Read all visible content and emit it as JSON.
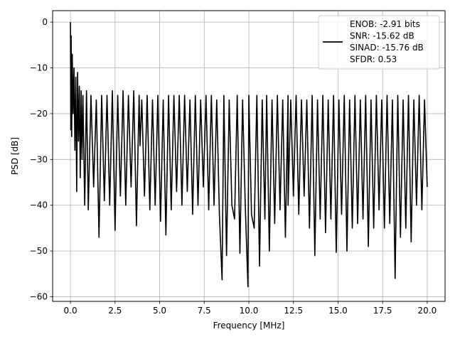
{
  "chart_data": {
    "type": "line",
    "title": "",
    "xlabel": "Frequency [MHz]",
    "ylabel": "PSD [dB]",
    "xlim": [
      -1.0,
      21.0
    ],
    "ylim": [
      -61.0,
      2.5
    ],
    "xticks": [
      0.0,
      2.5,
      5.0,
      7.5,
      10.0,
      12.5,
      15.0,
      17.5,
      20.0
    ],
    "xtick_labels": [
      "0.0",
      "2.5",
      "5.0",
      "7.5",
      "10.0",
      "12.5",
      "15.0",
      "17.5",
      "20.0"
    ],
    "yticks": [
      0,
      -10,
      -20,
      -30,
      -40,
      -50,
      -60
    ],
    "ytick_labels": [
      "0",
      "−10",
      "−20",
      "−30",
      "−40",
      "−50",
      "−60"
    ],
    "grid": true,
    "legend_position": "top-right",
    "legend_lines": [
      "ENOB: -2.91 bits",
      "SNR: -15.62 dB",
      "SINAD: -15.76 dB",
      "SFDR: 0.53"
    ],
    "series": [
      {
        "color": "#000000",
        "x": [
          0.0,
          0.02,
          0.04,
          0.07,
          0.1,
          0.15,
          0.2,
          0.25,
          0.3,
          0.35,
          0.4,
          0.45,
          0.5,
          0.55,
          0.6,
          0.65,
          0.7,
          0.8,
          0.9,
          1.0,
          1.15,
          1.3,
          1.45,
          1.6,
          1.75,
          1.9,
          2.05,
          2.2,
          2.35,
          2.5,
          2.65,
          2.8,
          2.95,
          3.1,
          3.25,
          3.4,
          3.55,
          3.7,
          3.85,
          3.9,
          4.0,
          4.15,
          4.3,
          4.45,
          4.6,
          4.75,
          4.9,
          5.05,
          5.2,
          5.35,
          5.5,
          5.65,
          5.8,
          5.95,
          6.1,
          6.25,
          6.4,
          6.55,
          6.7,
          6.85,
          7.0,
          7.15,
          7.3,
          7.45,
          7.6,
          7.75,
          7.9,
          8.05,
          8.2,
          8.35,
          8.5,
          8.6,
          8.75,
          8.9,
          9.05,
          9.2,
          9.35,
          9.5,
          9.65,
          9.8,
          9.95,
          10.0,
          10.15,
          10.3,
          10.45,
          10.6,
          10.75,
          10.9,
          11.0,
          11.15,
          11.3,
          11.45,
          11.6,
          11.75,
          11.9,
          12.05,
          12.2,
          12.2,
          12.35,
          12.5,
          12.65,
          12.8,
          12.95,
          13.1,
          13.25,
          13.4,
          13.55,
          13.7,
          13.85,
          14.0,
          14.15,
          14.3,
          14.45,
          14.6,
          14.75,
          14.9,
          15.05,
          15.2,
          15.35,
          15.5,
          15.65,
          15.8,
          15.95,
          16.1,
          16.25,
          16.4,
          16.55,
          16.7,
          16.85,
          17.0,
          17.15,
          17.3,
          17.45,
          17.6,
          17.75,
          17.9,
          18.05,
          18.2,
          18.35,
          18.5,
          18.65,
          18.8,
          18.95,
          19.1,
          19.25,
          19.4,
          19.55,
          19.7,
          19.85,
          20.0
        ],
        "y": [
          0,
          -23.5,
          -3,
          -25,
          -7,
          -20,
          -10,
          -28,
          -12,
          -37,
          -11,
          -26,
          -14,
          -34,
          -15,
          -30,
          -16,
          -40,
          -15,
          -41,
          -16,
          -36,
          -17,
          -47,
          -16,
          -39,
          -16,
          -40,
          -15,
          -45.5,
          -16,
          -38,
          -15,
          -40,
          -16,
          -36,
          -15,
          -44.5,
          -16,
          -27,
          -17,
          -38,
          -16,
          -41,
          -17,
          -40,
          -16,
          -43.5,
          -17,
          -46.5,
          -16,
          -41,
          -16,
          -37,
          -16,
          -40,
          -16,
          -37,
          -17,
          -42,
          -16,
          -40,
          -17,
          -36,
          -16,
          -41,
          -16,
          -40,
          -17,
          -42,
          -56.3,
          -16,
          -51,
          -17,
          -40,
          -43,
          -16,
          -50.5,
          -17,
          -40,
          -57.8,
          -16,
          -42,
          -45,
          -16,
          -53.3,
          -17,
          -43,
          -16,
          -50,
          -17,
          -44,
          -16,
          -41,
          -17,
          -47,
          -16,
          -40,
          -17,
          -38,
          -16,
          -42,
          -17,
          -38,
          -17,
          -45,
          -16,
          -51,
          -17,
          -43,
          -16,
          -46,
          -17,
          -43,
          -16,
          -50.3,
          -17,
          -42,
          -16,
          -50,
          -17,
          -45,
          -16,
          -44,
          -17,
          -43,
          -16,
          -49,
          -17,
          -45,
          -16,
          -41,
          -17,
          -45,
          -16,
          -44,
          -17,
          -56,
          -16,
          -47,
          -17,
          -45,
          -16,
          -48,
          -17,
          -40,
          -16,
          -41,
          -17,
          -36
        ]
      }
    ]
  }
}
